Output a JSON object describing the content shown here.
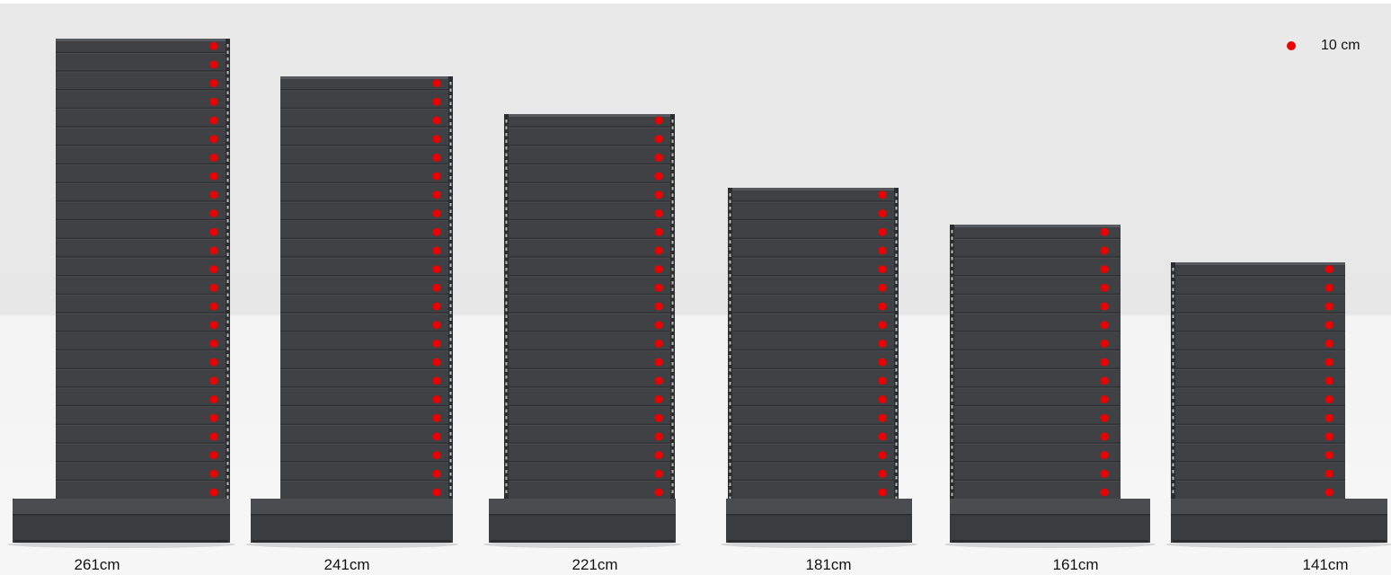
{
  "legend": {
    "label": "10 cm",
    "dot_color": "#ee0000"
  },
  "units": [
    {
      "height_label": "261cm",
      "height_cm": 261,
      "dots": 25
    },
    {
      "height_label": "241cm",
      "height_cm": 241,
      "dots": 23
    },
    {
      "height_label": "221cm",
      "height_cm": 221,
      "dots": 21
    },
    {
      "height_label": "181cm",
      "height_cm": 181,
      "dots": 17
    },
    {
      "height_label": "161cm",
      "height_cm": 161,
      "dots": 15
    },
    {
      "height_label": "141cm",
      "height_cm": 141,
      "dots": 13
    }
  ],
  "colors": {
    "panel": "#3f4144",
    "panel_line": "#2e3032",
    "base": "#3a3c3f",
    "base_top": "#4a4c50",
    "dot": "#ee0000"
  }
}
